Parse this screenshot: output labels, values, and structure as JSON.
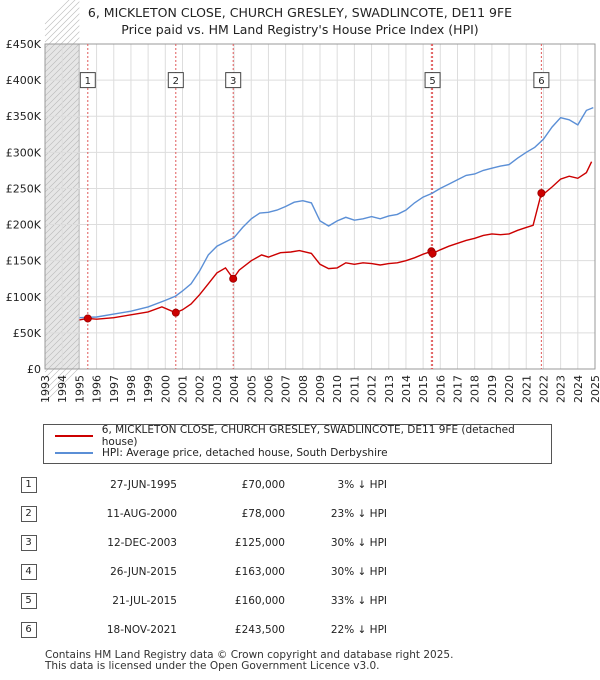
{
  "title_line1": "6, MICKLETON CLOSE, CHURCH GRESLEY, SWADLINCOTE, DE11 9FE",
  "title_line2": "Price paid vs. HM Land Registry's House Price Index (HPI)",
  "chart_data": {
    "type": "line",
    "title": "6, MICKLETON CLOSE, CHURCH GRESLEY, SWADLINCOTE, DE11 9FE — Price paid vs. HM Land Registry's House Price Index (HPI)",
    "xlabel": "",
    "ylabel": "",
    "xlim": [
      1993,
      2025
    ],
    "ylim": [
      0,
      450000
    ],
    "y_ticks": [
      0,
      50000,
      100000,
      150000,
      200000,
      250000,
      300000,
      350000,
      400000,
      450000
    ],
    "y_tick_labels": [
      "£0",
      "£50K",
      "£100K",
      "£150K",
      "£200K",
      "£250K",
      "£300K",
      "£350K",
      "£400K",
      "£450K"
    ],
    "x_ticks": [
      1993,
      1994,
      1995,
      1996,
      1997,
      1998,
      1999,
      2000,
      2001,
      2002,
      2003,
      2004,
      2005,
      2006,
      2007,
      2008,
      2009,
      2010,
      2011,
      2012,
      2013,
      2014,
      2015,
      2016,
      2017,
      2018,
      2019,
      2020,
      2021,
      2022,
      2023,
      2024,
      2025
    ],
    "data_start": 1995.0,
    "grid": true,
    "series": [
      {
        "name": "6, MICKLETON CLOSE, CHURCH GRESLEY, SWADLINCOTE, DE11 9FE (detached house)",
        "color": "#cc0000",
        "points": [
          [
            1995.0,
            68000
          ],
          [
            1995.49,
            70000
          ],
          [
            1996.0,
            69000
          ],
          [
            1997.0,
            71000
          ],
          [
            1998.0,
            75000
          ],
          [
            1999.0,
            79000
          ],
          [
            1999.8,
            86000
          ],
          [
            2000.6,
            78000
          ],
          [
            2001.0,
            82000
          ],
          [
            2001.5,
            90000
          ],
          [
            2002.0,
            103000
          ],
          [
            2002.5,
            118000
          ],
          [
            2003.0,
            133000
          ],
          [
            2003.5,
            140000
          ],
          [
            2003.95,
            125000
          ],
          [
            2004.3,
            137000
          ],
          [
            2005.0,
            150000
          ],
          [
            2005.6,
            158000
          ],
          [
            2006.0,
            155000
          ],
          [
            2006.7,
            161000
          ],
          [
            2007.3,
            162000
          ],
          [
            2007.8,
            164000
          ],
          [
            2008.5,
            160000
          ],
          [
            2009.0,
            145000
          ],
          [
            2009.5,
            139000
          ],
          [
            2010.0,
            140000
          ],
          [
            2010.5,
            147000
          ],
          [
            2011.0,
            145000
          ],
          [
            2011.5,
            147000
          ],
          [
            2012.0,
            146000
          ],
          [
            2012.5,
            144000
          ],
          [
            2013.0,
            146000
          ],
          [
            2013.5,
            147000
          ],
          [
            2014.0,
            150000
          ],
          [
            2014.5,
            154000
          ],
          [
            2015.0,
            159000
          ],
          [
            2015.48,
            163000
          ],
          [
            2015.55,
            160000
          ],
          [
            2016.0,
            165000
          ],
          [
            2016.5,
            170000
          ],
          [
            2017.0,
            174000
          ],
          [
            2017.5,
            178000
          ],
          [
            2018.0,
            181000
          ],
          [
            2018.5,
            185000
          ],
          [
            2019.0,
            187000
          ],
          [
            2019.5,
            186000
          ],
          [
            2020.0,
            187000
          ],
          [
            2020.5,
            192000
          ],
          [
            2021.0,
            196000
          ],
          [
            2021.4,
            199000
          ],
          [
            2021.88,
            243500
          ],
          [
            2022.0,
            242000
          ],
          [
            2022.5,
            252000
          ],
          [
            2023.0,
            263000
          ],
          [
            2023.5,
            267000
          ],
          [
            2024.0,
            264000
          ],
          [
            2024.5,
            272000
          ],
          [
            2024.8,
            287000
          ]
        ]
      },
      {
        "name": "HPI: Average price, detached house, South Derbyshire",
        "color": "#5b8fd6",
        "points": [
          [
            1995.0,
            71000
          ],
          [
            1996.0,
            72000
          ],
          [
            1997.0,
            76000
          ],
          [
            1998.0,
            80000
          ],
          [
            1999.0,
            86000
          ],
          [
            2000.0,
            95000
          ],
          [
            2000.6,
            101000
          ],
          [
            2001.0,
            108000
          ],
          [
            2001.5,
            118000
          ],
          [
            2002.0,
            136000
          ],
          [
            2002.5,
            158000
          ],
          [
            2003.0,
            170000
          ],
          [
            2003.5,
            176000
          ],
          [
            2004.0,
            182000
          ],
          [
            2004.5,
            196000
          ],
          [
            2005.0,
            208000
          ],
          [
            2005.5,
            216000
          ],
          [
            2006.0,
            217000
          ],
          [
            2006.5,
            220000
          ],
          [
            2007.0,
            225000
          ],
          [
            2007.5,
            231000
          ],
          [
            2008.0,
            233000
          ],
          [
            2008.5,
            230000
          ],
          [
            2009.0,
            205000
          ],
          [
            2009.5,
            198000
          ],
          [
            2010.0,
            205000
          ],
          [
            2010.5,
            210000
          ],
          [
            2011.0,
            206000
          ],
          [
            2011.5,
            208000
          ],
          [
            2012.0,
            211000
          ],
          [
            2012.5,
            208000
          ],
          [
            2013.0,
            212000
          ],
          [
            2013.5,
            214000
          ],
          [
            2014.0,
            220000
          ],
          [
            2014.5,
            230000
          ],
          [
            2015.0,
            238000
          ],
          [
            2015.5,
            243000
          ],
          [
            2016.0,
            250000
          ],
          [
            2016.5,
            256000
          ],
          [
            2017.0,
            262000
          ],
          [
            2017.5,
            268000
          ],
          [
            2018.0,
            270000
          ],
          [
            2018.5,
            275000
          ],
          [
            2019.0,
            278000
          ],
          [
            2019.5,
            281000
          ],
          [
            2020.0,
            283000
          ],
          [
            2020.5,
            292000
          ],
          [
            2021.0,
            300000
          ],
          [
            2021.5,
            307000
          ],
          [
            2022.0,
            318000
          ],
          [
            2022.5,
            335000
          ],
          [
            2023.0,
            348000
          ],
          [
            2023.5,
            345000
          ],
          [
            2024.0,
            338000
          ],
          [
            2024.5,
            358000
          ],
          [
            2024.9,
            362000
          ]
        ]
      }
    ],
    "sales": [
      {
        "label": "1",
        "x": 1995.49,
        "price": 70000,
        "box_value": 400000
      },
      {
        "label": "2",
        "x": 2000.61,
        "price": 78000,
        "box_value": 400000
      },
      {
        "label": "3",
        "x": 2003.95,
        "price": 125000,
        "box_value": 400000
      },
      {
        "label": "4",
        "x": 2015.48,
        "price": 163000,
        "box_value": 400000
      },
      {
        "label": "5",
        "x": 2015.55,
        "price": 160000,
        "box_value": 400000
      },
      {
        "label": "6",
        "x": 2021.88,
        "price": 243500,
        "box_value": 400000
      }
    ],
    "box_labels": [
      "5",
      "6"
    ]
  },
  "legend": {
    "property_label": "6, MICKLETON CLOSE, CHURCH GRESLEY, SWADLINCOTE, DE11 9FE (detached house)",
    "hpi_label": "HPI: Average price, detached house, South Derbyshire",
    "property_color": "#cc0000",
    "hpi_color": "#5b8fd6"
  },
  "sales_table": [
    {
      "num": "1",
      "date": "27-JUN-1995",
      "price": "£70,000",
      "diff": "3% ↓ HPI"
    },
    {
      "num": "2",
      "date": "11-AUG-2000",
      "price": "£78,000",
      "diff": "23% ↓ HPI"
    },
    {
      "num": "3",
      "date": "12-DEC-2003",
      "price": "£125,000",
      "diff": "30% ↓ HPI"
    },
    {
      "num": "4",
      "date": "26-JUN-2015",
      "price": "£163,000",
      "diff": "30% ↓ HPI"
    },
    {
      "num": "5",
      "date": "21-JUL-2015",
      "price": "£160,000",
      "diff": "33% ↓ HPI"
    },
    {
      "num": "6",
      "date": "18-NOV-2021",
      "price": "£243,500",
      "diff": "22% ↓ HPI"
    }
  ],
  "footer_line1": "Contains HM Land Registry data © Crown copyright and database right 2025.",
  "footer_line2": "This data is licensed under the Open Government Licence v3.0."
}
